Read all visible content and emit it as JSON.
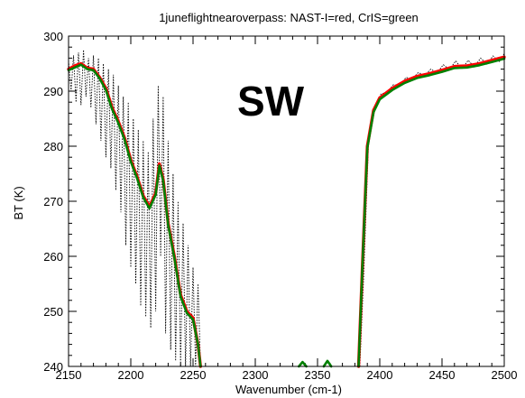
{
  "chart_data": {
    "type": "line",
    "title": "1juneflightnearoverpass:  NAST-I=red, CrIS=green",
    "xlabel": "Wavenumber (cm-1)",
    "ylabel": "BT (K)",
    "annotation": "SW",
    "xlim": [
      2150,
      2500
    ],
    "ylim": [
      240,
      300
    ],
    "xticks": [
      2150,
      2200,
      2250,
      2300,
      2350,
      2400,
      2450,
      2500
    ],
    "yticks": [
      240,
      250,
      260,
      270,
      280,
      290,
      300
    ],
    "grid": false,
    "series": [
      {
        "color": "#ff0000",
        "style": "solid",
        "segments": [
          [
            [
              2150,
              294.0
            ],
            [
              2155,
              294.6
            ],
            [
              2160,
              295.0
            ],
            [
              2165,
              294.2
            ],
            [
              2170,
              294.0
            ],
            [
              2175,
              292.5
            ],
            [
              2180,
              290.5
            ],
            [
              2185,
              287.0
            ],
            [
              2190,
              284.5
            ],
            [
              2195,
              281.5
            ],
            [
              2200,
              277.5
            ],
            [
              2205,
              274.5
            ],
            [
              2210,
              271.0
            ],
            [
              2215,
              269.0
            ],
            [
              2220,
              271.5
            ],
            [
              2223,
              276.8
            ],
            [
              2226,
              274.0
            ],
            [
              2230,
              266.0
            ],
            [
              2235,
              260.0
            ],
            [
              2240,
              253.0
            ],
            [
              2245,
              250.0
            ],
            [
              2250,
              248.8
            ],
            [
              2254,
              244.0
            ],
            [
              2256,
              240.0
            ]
          ],
          [
            [
              2383,
              240.0
            ],
            [
              2386,
              258.0
            ],
            [
              2390,
              280.0
            ],
            [
              2395,
              286.5
            ],
            [
              2400,
              288.8
            ],
            [
              2410,
              290.5
            ],
            [
              2420,
              291.8
            ],
            [
              2430,
              292.7
            ],
            [
              2440,
              293.2
            ],
            [
              2450,
              293.8
            ],
            [
              2460,
              294.5
            ],
            [
              2470,
              294.6
            ],
            [
              2480,
              295.0
            ],
            [
              2490,
              295.6
            ],
            [
              2500,
              296.2
            ]
          ]
        ]
      },
      {
        "color": "#008000",
        "style": "solid",
        "segments": [
          [
            [
              2150,
              293.8
            ],
            [
              2155,
              294.3
            ],
            [
              2160,
              294.8
            ],
            [
              2165,
              294.0
            ],
            [
              2170,
              293.8
            ],
            [
              2175,
              292.3
            ],
            [
              2180,
              290.2
            ],
            [
              2185,
              286.7
            ],
            [
              2190,
              284.2
            ],
            [
              2195,
              281.2
            ],
            [
              2200,
              277.2
            ],
            [
              2205,
              274.2
            ],
            [
              2210,
              270.7
            ],
            [
              2215,
              268.7
            ],
            [
              2220,
              271.2
            ],
            [
              2223,
              276.5
            ],
            [
              2226,
              273.7
            ],
            [
              2230,
              265.7
            ],
            [
              2235,
              259.7
            ],
            [
              2240,
              252.7
            ],
            [
              2245,
              249.7
            ],
            [
              2250,
              248.5
            ],
            [
              2254,
              244.0
            ],
            [
              2256,
              240.0
            ]
          ],
          [
            [
              2335,
              240.0
            ],
            [
              2338,
              240.8
            ],
            [
              2341,
              240.0
            ]
          ],
          [
            [
              2355,
              240.0
            ],
            [
              2358,
              241.0
            ],
            [
              2361,
              240.0
            ]
          ],
          [
            [
              2383,
              240.0
            ],
            [
              2386,
              258.0
            ],
            [
              2390,
              279.7
            ],
            [
              2395,
              286.2
            ],
            [
              2400,
              288.5
            ],
            [
              2410,
              290.2
            ],
            [
              2420,
              291.5
            ],
            [
              2430,
              292.4
            ],
            [
              2440,
              292.9
            ],
            [
              2450,
              293.5
            ],
            [
              2460,
              294.2
            ],
            [
              2470,
              294.3
            ],
            [
              2480,
              294.7
            ],
            [
              2490,
              295.3
            ],
            [
              2500,
              295.9
            ]
          ]
        ]
      },
      {
        "color": "#000000",
        "style": "dotted",
        "segments": [
          [
            [
              2150,
              295.5
            ],
            [
              2152,
              290.0
            ],
            [
              2154,
              296.5
            ],
            [
              2156,
              288.0
            ],
            [
              2158,
              297.0
            ],
            [
              2160,
              287.5
            ],
            [
              2162,
              297.5
            ],
            [
              2164,
              289.0
            ],
            [
              2166,
              296.0
            ],
            [
              2168,
              287.0
            ],
            [
              2170,
              296.5
            ],
            [
              2172,
              284.0
            ],
            [
              2174,
              296.0
            ],
            [
              2176,
              281.0
            ],
            [
              2178,
              295.0
            ],
            [
              2180,
              278.0
            ],
            [
              2182,
              294.0
            ],
            [
              2184,
              276.0
            ],
            [
              2186,
              293.0
            ],
            [
              2188,
              272.0
            ],
            [
              2190,
              291.0
            ],
            [
              2192,
              268.0
            ],
            [
              2194,
              289.0
            ],
            [
              2196,
              262.0
            ],
            [
              2198,
              288.0
            ],
            [
              2200,
              258.0
            ],
            [
              2202,
              285.0
            ],
            [
              2204,
              255.0
            ],
            [
              2206,
              283.0
            ],
            [
              2208,
              251.0
            ],
            [
              2210,
              281.0
            ],
            [
              2212,
              249.0
            ],
            [
              2214,
              279.0
            ],
            [
              2216,
              247.0
            ],
            [
              2218,
              285.0
            ],
            [
              2220,
              250.0
            ],
            [
              2222,
              291.0
            ],
            [
              2224,
              260.0
            ],
            [
              2226,
              289.0
            ],
            [
              2228,
              246.0
            ],
            [
              2230,
              281.0
            ],
            [
              2232,
              243.0
            ],
            [
              2234,
              275.0
            ],
            [
              2236,
              241.0
            ],
            [
              2238,
              270.0
            ],
            [
              2240,
              240.0
            ],
            [
              2242,
              266.0
            ],
            [
              2244,
              240.0
            ],
            [
              2246,
              262.0
            ],
            [
              2248,
              240.0
            ],
            [
              2250,
              258.0
            ],
            [
              2252,
              240.0
            ],
            [
              2254,
              255.0
            ],
            [
              2256,
              240.0
            ]
          ],
          [
            [
              2384,
              240.0
            ],
            [
              2387,
              256.0
            ],
            [
              2391,
              281.0
            ],
            [
              2396,
              287.0
            ],
            [
              2401,
              289.5
            ],
            [
              2406,
              289.8
            ],
            [
              2411,
              291.2
            ],
            [
              2416,
              290.9
            ],
            [
              2421,
              292.5
            ],
            [
              2426,
              292.2
            ],
            [
              2431,
              293.4
            ],
            [
              2436,
              292.8
            ],
            [
              2441,
              294.0
            ],
            [
              2446,
              293.3
            ],
            [
              2451,
              294.8
            ],
            [
              2456,
              293.9
            ],
            [
              2461,
              295.5
            ],
            [
              2466,
              294.0
            ],
            [
              2471,
              295.6
            ],
            [
              2476,
              294.4
            ],
            [
              2481,
              296.0
            ],
            [
              2486,
              294.9
            ],
            [
              2491,
              296.4
            ],
            [
              2496,
              295.4
            ],
            [
              2500,
              296.8
            ]
          ]
        ]
      }
    ]
  }
}
